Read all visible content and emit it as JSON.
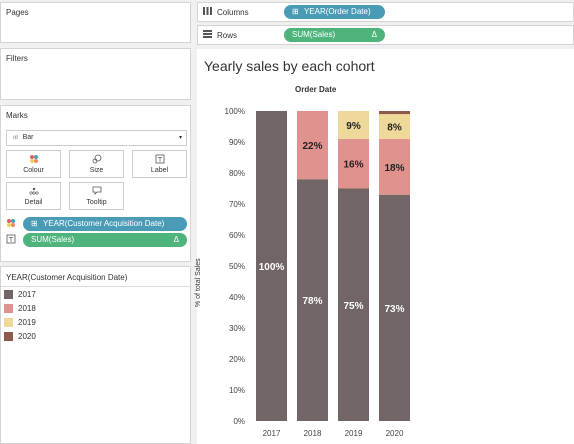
{
  "left_pane": {
    "pages": {
      "title": "Pages"
    },
    "filters": {
      "title": "Filters"
    },
    "marks": {
      "title": "Marks",
      "mark_type": "Bar",
      "mark_type_icon": "bar-chart-icon",
      "buttons": [
        {
          "label": "Colour",
          "icon": "colour-dots-icon"
        },
        {
          "label": "Size",
          "icon": "size-icon"
        },
        {
          "label": "Label",
          "icon": "label-icon"
        },
        {
          "label": "Detail",
          "icon": "detail-icon"
        },
        {
          "label": "Tooltip",
          "icon": "tooltip-icon"
        }
      ],
      "fields": [
        {
          "label": "YEAR(Customer Acquisition Date)",
          "prefix": "⊞",
          "role_icon": "colour-dots-icon"
        },
        {
          "label": "SUM(Sales)",
          "suffix": "Δ",
          "role_icon": "label-icon"
        }
      ]
    },
    "legend": {
      "title": "YEAR(Customer Acquisition Date)",
      "items": [
        {
          "label": "2017",
          "color": "#716565"
        },
        {
          "label": "2018",
          "color": "#e0928e"
        },
        {
          "label": "2019",
          "color": "#eed99a"
        },
        {
          "label": "2020",
          "color": "#8f5a4a"
        }
      ]
    }
  },
  "shelves": {
    "columns": {
      "label": "Columns",
      "icon": "columns-icon",
      "pill": "YEAR(Order Date)",
      "prefix": "⊞"
    },
    "rows": {
      "label": "Rows",
      "icon": "rows-icon",
      "pill": "SUM(Sales)",
      "suffix": "Δ"
    }
  },
  "view": {
    "title": "Yearly sales by each cohort",
    "column_header": "Order Date"
  },
  "chart_data": {
    "type": "bar",
    "stacked": true,
    "categories": [
      "2017",
      "2018",
      "2019",
      "2020"
    ],
    "series": [
      {
        "name": "2017",
        "color": "#716565",
        "values": [
          100,
          78,
          75,
          73
        ]
      },
      {
        "name": "2018",
        "color": "#e0928e",
        "values": [
          0,
          22,
          16,
          18
        ]
      },
      {
        "name": "2019",
        "color": "#eed99a",
        "values": [
          0,
          0,
          9,
          8
        ]
      },
      {
        "name": "2020",
        "color": "#8f5a4a",
        "values": [
          0,
          0,
          0,
          1
        ]
      }
    ],
    "data_labels": [
      {
        "category": "2017",
        "series": "2017",
        "text": "100%"
      },
      {
        "category": "2018",
        "series": "2017",
        "text": "78%"
      },
      {
        "category": "2019",
        "series": "2017",
        "text": "75%"
      },
      {
        "category": "2020",
        "series": "2017",
        "text": "73%"
      },
      {
        "category": "2018",
        "series": "2018",
        "text": "22%"
      },
      {
        "category": "2019",
        "series": "2018",
        "text": "16%"
      },
      {
        "category": "2020",
        "series": "2018",
        "text": "18%"
      },
      {
        "category": "2019",
        "series": "2019",
        "text": "9%"
      },
      {
        "category": "2020",
        "series": "2019",
        "text": "8%"
      }
    ],
    "title": "Yearly sales by each cohort",
    "xlabel": "Order Date",
    "ylabel": "% of total Sales",
    "ylim": [
      0,
      100
    ],
    "yticks": [
      "0%",
      "10%",
      "20%",
      "30%",
      "40%",
      "50%",
      "60%",
      "70%",
      "80%",
      "90%",
      "100%"
    ],
    "grid": false,
    "legend": "separate-panel"
  }
}
